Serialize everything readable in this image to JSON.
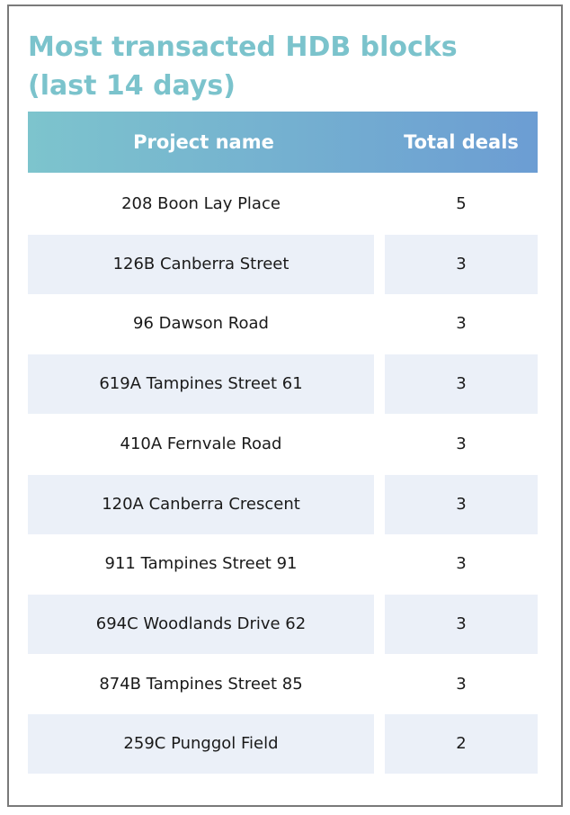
{
  "title": "Most transacted HDB blocks (last 14 days)",
  "table": {
    "header": [
      "Project name",
      "Total deals"
    ],
    "rows": [
      [
        "208 Boon Lay Place",
        5
      ],
      [
        "126B Canberra Street",
        3
      ],
      [
        "96 Dawson Road",
        3
      ],
      [
        "619A Tampines Street 61",
        3
      ],
      [
        "410A Fernvale Road",
        3
      ],
      [
        "120A Canberra Crescent",
        3
      ],
      [
        "911 Tampines Street 91",
        3
      ],
      [
        "694C Woodlands Drive 62",
        3
      ],
      [
        "874B Tampines Street 85",
        3
      ],
      [
        "259C Punggol Field",
        2
      ]
    ]
  }
}
